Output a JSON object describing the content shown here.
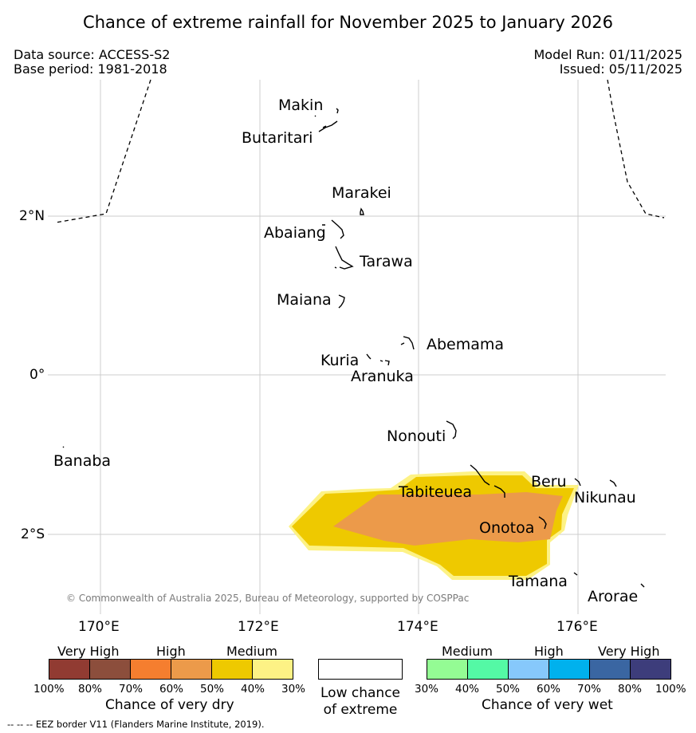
{
  "title": "Chance of extreme rainfall for November 2025 to January 2026",
  "data_source": "Data source: ACCESS-S2",
  "base_period": "Base period: 1981-2018",
  "model_run": "Model Run: 01/11/2025",
  "issued": "Issued: 05/11/2025",
  "copyright": "© Commonwealth of Australia 2025, Bureau of Meteorology, supported by COSPPac",
  "lat_ticks": [
    "2°N",
    "0°",
    "2°S"
  ],
  "lon_ticks": [
    "170°E",
    "172°E",
    "174°E",
    "176°E"
  ],
  "islands": {
    "makin": "Makin",
    "butaritari": "Butaritari",
    "marakei": "Marakei",
    "abaiang": "Abaiang",
    "tarawa": "Tarawa",
    "maiana": "Maiana",
    "abemama": "Abemama",
    "kuria": "Kuria",
    "aranuka": "Aranuka",
    "nonouti": "Nonouti",
    "banaba": "Banaba",
    "tabiteuea": "Tabiteuea",
    "beru": "Beru",
    "nikunau": "Nikunau",
    "onotoa": "Onotoa",
    "tamana": "Tamana",
    "arorae": "Arorae"
  },
  "legend": {
    "dry": {
      "headers": [
        "Very High",
        "High",
        "Medium"
      ],
      "colors": [
        "#913b32",
        "#8c4e3c",
        "#f57e2f",
        "#ec9a4a",
        "#eec900",
        "#fdf285"
      ],
      "ticks": [
        "100%",
        "80%",
        "70%",
        "60%",
        "50%",
        "40%",
        "30%"
      ],
      "caption": "Chance of very dry"
    },
    "low": {
      "color": "#ffffff",
      "caption_line1": "Low chance",
      "caption_line2": "of extreme"
    },
    "wet": {
      "headers": [
        "Medium",
        "High",
        "Very High"
      ],
      "colors": [
        "#94fc94",
        "#54f9a5",
        "#86c8fb",
        "#00b1ed",
        "#3a66a2",
        "#3d3d7b"
      ],
      "ticks": [
        "30%",
        "40%",
        "50%",
        "60%",
        "70%",
        "80%",
        "100%"
      ],
      "caption": "Chance of very wet"
    }
  },
  "footnote": "--  --  -- EEZ border V11 (Flanders Marine Institute, 2019).",
  "colors": {
    "medium_dry": "#eec900",
    "high_dry": "#ec9a4a",
    "low_dry": "#fdf285",
    "grid": "#cccccc"
  }
}
